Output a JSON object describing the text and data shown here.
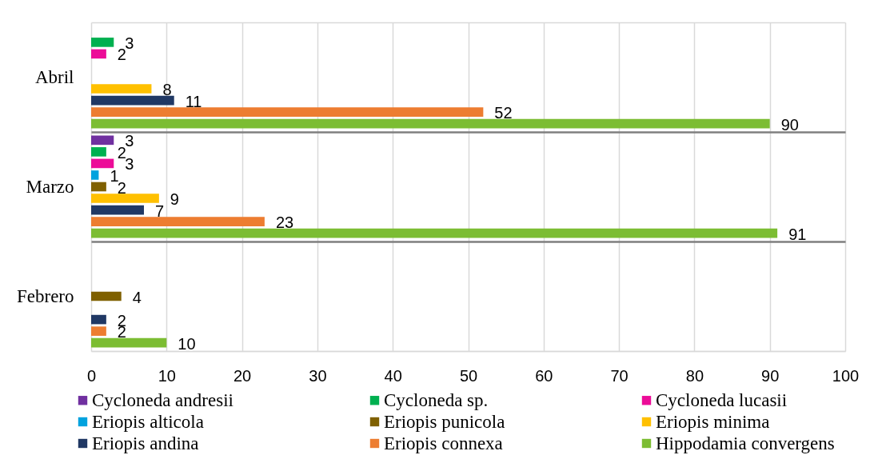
{
  "chart_data": {
    "type": "bar",
    "orientation": "horizontal",
    "categories": [
      "Abril",
      "Marzo",
      "Febrero"
    ],
    "series": [
      {
        "name": "Cycloneda andresii",
        "color": "#7030a0",
        "values": [
          null,
          3,
          null
        ]
      },
      {
        "name": "Cycloneda sp.",
        "color": "#00b050",
        "values": [
          3,
          2,
          null
        ]
      },
      {
        "name": "Cycloneda lucasii",
        "color": "#ec0c98",
        "values": [
          2,
          3,
          null
        ]
      },
      {
        "name": "Eriopis alticola",
        "color": "#00a2de",
        "values": [
          null,
          1,
          null
        ]
      },
      {
        "name": "Eriopis punicola",
        "color": "#7f6000",
        "values": [
          null,
          2,
          4
        ]
      },
      {
        "name": "Eriopis minima",
        "color": "#ffc000",
        "values": [
          8,
          9,
          null
        ]
      },
      {
        "name": "Eriopis andina",
        "color": "#203864",
        "values": [
          11,
          7,
          2
        ]
      },
      {
        "name": "Eriopis connexa",
        "color": "#ed7d31",
        "values": [
          52,
          23,
          2
        ]
      },
      {
        "name": "Hippodamia convergens",
        "color": "#7cbd33",
        "values": [
          90,
          91,
          10
        ]
      }
    ],
    "xlim": [
      0,
      100
    ],
    "xticks": [
      0,
      10,
      20,
      30,
      40,
      50,
      60,
      70,
      80,
      90,
      100
    ],
    "grid": true,
    "legend": "bottom",
    "data_labels": true
  }
}
